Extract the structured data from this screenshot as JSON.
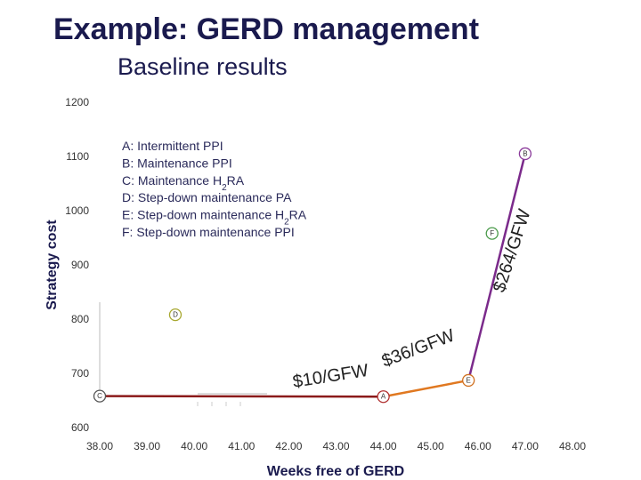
{
  "header": {
    "title": "Example: GERD management",
    "subtitle": "Baseline results"
  },
  "chart_data": {
    "type": "scatter",
    "xlabel": "Weeks free of GERD",
    "ylabel": "Strategy cost",
    "xlim": [
      38,
      48
    ],
    "ylim": [
      600,
      1200
    ],
    "x_ticks": [
      "38.00",
      "39.00",
      "40.00",
      "41.00",
      "42.00",
      "43.00",
      "44.00",
      "45.00",
      "46.00",
      "47.00",
      "48.00"
    ],
    "y_ticks": [
      "600",
      "700",
      "800",
      "900",
      "1000",
      "1100",
      "1200"
    ],
    "legend": [
      {
        "pre": "A: Intermittent PPI"
      },
      {
        "pre": "B: Maintenance PPI"
      },
      {
        "pre": "C: Maintenance H",
        "sub": "2",
        "post": "RA"
      },
      {
        "pre": "D: Step-down maintenance PA"
      },
      {
        "pre": "E: Step-down maintenance H",
        "sub": "2",
        "post": "RA"
      },
      {
        "pre": "F: Step-down maintenance PPI"
      }
    ],
    "points": [
      {
        "label": "A",
        "x": 44.0,
        "y": 657,
        "color": "#b03030"
      },
      {
        "label": "B",
        "x": 47.0,
        "y": 1105,
        "color": "#8a3a9a"
      },
      {
        "label": "C",
        "x": 38.0,
        "y": 658,
        "color": "#555555"
      },
      {
        "label": "D",
        "x": 39.6,
        "y": 808,
        "color": "#a8a830"
      },
      {
        "label": "E",
        "x": 45.8,
        "y": 687,
        "color": "#d07020"
      },
      {
        "label": "F",
        "x": 46.3,
        "y": 958,
        "color": "#4a9a4a"
      }
    ],
    "frontier": [
      {
        "from": "C",
        "to": "A",
        "color": "#8b1a1a",
        "label": "$10/GFW"
      },
      {
        "from": "A",
        "to": "E",
        "color": "#e07820",
        "label": "$36/GFW"
      },
      {
        "from": "E",
        "to": "B",
        "color": "#7b2a8b",
        "label": "$264/GFW"
      }
    ]
  }
}
